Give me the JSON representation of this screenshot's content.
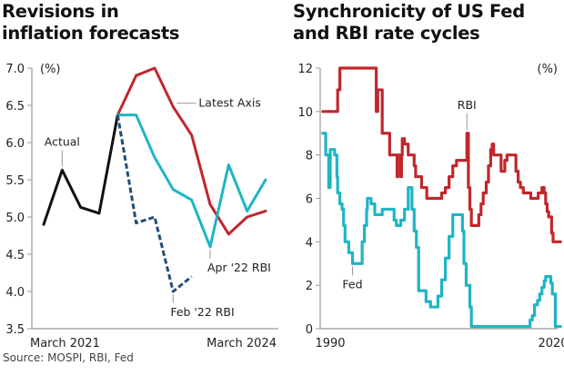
{
  "source": "Source: MOSPI, RBI, Fed",
  "colors": {
    "actual": "#111111",
    "latest": "#c0272d",
    "apr22": "#1fb5c4",
    "feb22": "#1f4e79",
    "axis": "#999999"
  },
  "chart_data": [
    {
      "type": "line",
      "title": "Revisions in inflation forecasts",
      "title_lines": [
        "Revisions in",
        "inflation forecasts"
      ],
      "unit_label": "(%)",
      "xlabel": "",
      "ylabel": "(%)",
      "ylim": [
        3.5,
        7.0
      ],
      "yticks": [
        3.5,
        4.0,
        4.5,
        5.0,
        5.5,
        6.0,
        6.5,
        7.0
      ],
      "ytick_labels": [
        "3.5",
        "4.0",
        "4.5",
        "5.0",
        "5.5",
        "6.0",
        "6.5",
        "7.0"
      ],
      "x_range": [
        0,
        12
      ],
      "xtick_labels": [
        {
          "x": 0,
          "label": "March 2021"
        },
        {
          "x": 12,
          "label": "March 2024"
        }
      ],
      "grid": false,
      "series": [
        {
          "name": "Actual",
          "style": "solid",
          "color_key": "actual",
          "x": [
            0,
            1,
            2,
            3,
            4
          ],
          "values": [
            4.9,
            5.63,
            5.13,
            5.05,
            6.37
          ]
        },
        {
          "name": "Latest Axis",
          "style": "solid",
          "color_key": "latest",
          "x": [
            4,
            5,
            6,
            7,
            8,
            9,
            10,
            11,
            12
          ],
          "values": [
            6.37,
            6.9,
            7.0,
            6.48,
            6.1,
            5.17,
            4.77,
            5.0,
            5.08
          ]
        },
        {
          "name": "Apr '22 RBI",
          "style": "solid",
          "color_key": "apr22",
          "x": [
            4,
            5,
            6,
            7,
            8,
            9,
            10,
            11,
            12
          ],
          "values": [
            6.37,
            6.37,
            5.8,
            5.37,
            5.23,
            4.6,
            5.7,
            5.08,
            5.5
          ]
        },
        {
          "name": "Feb '22 RBI",
          "style": "dashed",
          "color_key": "feb22",
          "x": [
            4,
            5,
            6,
            7,
            8
          ],
          "values": [
            6.37,
            4.92,
            5.0,
            4.0,
            4.2
          ]
        }
      ],
      "annotations": [
        {
          "text": "Actual",
          "series": "Actual",
          "x": 1,
          "y": 5.63,
          "placement": "above"
        },
        {
          "text": "Latest Axis",
          "series": "Latest Axis",
          "x": 7,
          "y": 6.48,
          "placement": "right"
        },
        {
          "text": "Apr '22 RBI",
          "series": "Apr '22 RBI",
          "x": 9,
          "y": 4.6,
          "placement": "below"
        },
        {
          "text": "Feb '22 RBI",
          "series": "Feb '22 RBI",
          "x": 7,
          "y": 4.0,
          "placement": "below"
        }
      ]
    },
    {
      "type": "line",
      "title": "Synchronicity of US Fed and RBI rate cycles",
      "title_lines": [
        "Synchronicity of US Fed",
        "and RBI rate cycles"
      ],
      "unit_label": "(%)",
      "xlabel": "",
      "ylabel": "(%)",
      "ylim": [
        0,
        12
      ],
      "yticks": [
        0,
        2,
        4,
        6,
        8,
        10,
        12
      ],
      "ytick_labels": [
        "0",
        "2",
        "4",
        "6",
        "8",
        "10",
        "12"
      ],
      "x_range": [
        1989.0,
        2021.0
      ],
      "xtick_labels": [
        {
          "x": 1990,
          "label": "1990"
        },
        {
          "x": 2020,
          "label": "2020"
        }
      ],
      "grid": false,
      "series": [
        {
          "name": "RBI",
          "style": "step",
          "color_key": "latest",
          "x": [
            1989.0,
            1990.1,
            1991.0,
            1991.2,
            1991.3,
            1991.6,
            1996.0,
            1996.2,
            1996.4,
            1997.0,
            1997.1,
            1997.25,
            1997.4,
            1997.6,
            1998.0,
            1998.5,
            1999.0,
            1999.1,
            1999.5,
            1999.6,
            1999.7,
            2000.0,
            2000.1,
            2000.5,
            2001.0,
            2001.3,
            2001.5,
            2002.0,
            2002.3,
            2003.0,
            2003.5,
            2004.0,
            2004.5,
            2005.0,
            2005.5,
            2006.0,
            2006.5,
            2007.0,
            2008.0,
            2008.4,
            2008.6,
            2008.8,
            2009.0,
            2009.3,
            2010.0,
            2010.3,
            2010.6,
            2011.0,
            2011.3,
            2011.6,
            2011.8,
            2012.0,
            2012.5,
            2013.0,
            2013.5,
            2013.8,
            2014.0,
            2015.0,
            2015.3,
            2015.6,
            2016.0,
            2016.5,
            2017.0,
            2017.6,
            2018.0,
            2018.5,
            2018.8,
            2019.0,
            2019.2,
            2019.4,
            2019.6,
            2019.8,
            2020.0,
            2020.3,
            2020.8,
            2021.0
          ],
          "values": [
            10,
            10,
            11,
            11,
            12,
            12,
            12,
            10,
            11,
            9,
            9,
            9,
            9,
            9,
            8,
            8,
            7,
            8,
            7,
            8,
            8.75,
            8.5,
            8.5,
            8,
            8,
            7.5,
            7,
            7,
            6.5,
            6,
            6,
            6,
            6,
            6.25,
            6.5,
            7,
            7.5,
            7.75,
            7.75,
            9,
            6.5,
            5.5,
            4.75,
            4.75,
            5.25,
            5.75,
            6.25,
            6.75,
            7.5,
            8.25,
            8.5,
            8,
            8,
            7.25,
            7.75,
            8,
            8,
            7.25,
            6.75,
            6.5,
            6.25,
            6.25,
            6,
            6,
            6.25,
            6.5,
            6.25,
            5.75,
            5.4,
            5.15,
            5.15,
            4.4,
            4,
            4,
            4,
            4
          ]
        },
        {
          "name": "Fed",
          "style": "step",
          "color_key": "apr22",
          "x": [
            1989.0,
            1989.4,
            1989.8,
            1990.0,
            1990.6,
            1990.9,
            1991.0,
            1991.3,
            1991.6,
            1991.8,
            1992.0,
            1992.5,
            1993.0,
            1994.0,
            1994.3,
            1994.6,
            1994.9,
            1995.0,
            1995.5,
            1996.0,
            1997.0,
            1998.0,
            1998.6,
            1998.9,
            1999.0,
            1999.5,
            2000.0,
            2000.5,
            2000.8,
            2001.0,
            2001.3,
            2001.6,
            2001.9,
            2002.0,
            2002.9,
            2003.5,
            2004.0,
            2004.5,
            2005.0,
            2005.5,
            2006.0,
            2006.5,
            2007.5,
            2007.8,
            2008.0,
            2008.3,
            2008.8,
            2009.0,
            2015.9,
            2016.9,
            2017.2,
            2017.5,
            2017.9,
            2018.2,
            2018.5,
            2018.8,
            2019.0,
            2019.5,
            2019.7,
            2019.9,
            2020.1,
            2020.3,
            2021.0
          ],
          "values": [
            9,
            8.0,
            6.5,
            8.25,
            8.0,
            7.0,
            6.25,
            5.75,
            5.5,
            4.75,
            4.0,
            3.5,
            3.0,
            3.0,
            4.0,
            4.75,
            5.5,
            6.0,
            5.75,
            5.25,
            5.5,
            5.5,
            5.0,
            4.75,
            4.75,
            5.0,
            5.5,
            6.5,
            6.5,
            5.5,
            4.5,
            3.75,
            1.75,
            1.75,
            1.25,
            1.0,
            1.0,
            1.5,
            2.25,
            3.25,
            4.25,
            5.25,
            5.25,
            4.5,
            3.0,
            2.0,
            1.0,
            0.1,
            0.1,
            0.4,
            0.6,
            1.1,
            1.3,
            1.6,
            1.9,
            2.2,
            2.4,
            2.4,
            2.1,
            1.6,
            1.6,
            0.1,
            0.1
          ]
        }
      ],
      "annotations": [
        {
          "text": "RBI",
          "series": "RBI",
          "x": 2008.4,
          "y": 9,
          "placement": "above"
        },
        {
          "text": "Fed",
          "series": "Fed",
          "x": 1993.0,
          "y": 3.0,
          "placement": "below"
        }
      ]
    }
  ]
}
